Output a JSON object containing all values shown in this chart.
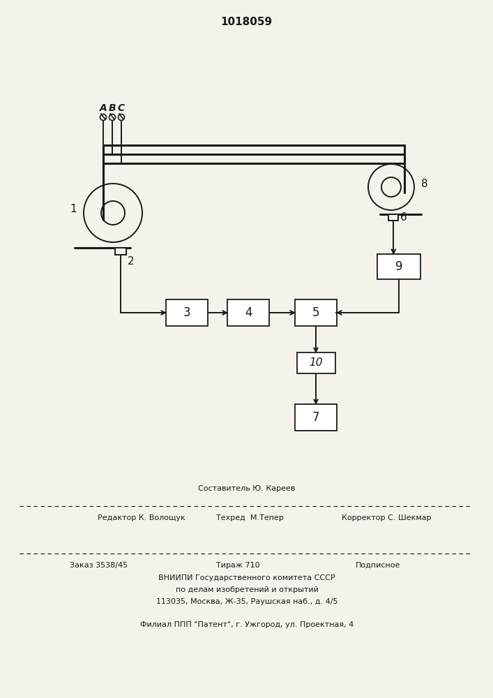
{
  "title": "1018059",
  "bg_color": "#f5f2ec",
  "line_color": "#1a1a1a",
  "label_A": "A",
  "label_B": "B",
  "label_C": "C",
  "ct1_label": "1",
  "ct1_bot_label": "2",
  "ct2_label": "8",
  "ct2_bot_label": "6",
  "box3_label": "3",
  "box4_label": "4",
  "box5_label": "5",
  "box7_label": "7",
  "box9_label": "9",
  "box10_label": "10",
  "text_composer": "Составитель Ю. Кареев",
  "text_editor": "Редактор К. Волощук",
  "text_techred": "Техред  М.Тепер",
  "text_corrector": "Корректор С. Шекмар",
  "text_order": "Заказ 3538/45",
  "text_tirazh": "Тираж 710",
  "text_podp": "Подписное",
  "text_vniip1": "ВНИИПИ Государственного комитета СССР",
  "text_vniip2": "по делам изобретений и открытий",
  "text_vniip3": "113035, Москва, Ж-35, Раушская наб., д. 4/5",
  "text_filial": "Филиал ППП \"Патент\", г. Ужгород, ул. Проектная, 4"
}
